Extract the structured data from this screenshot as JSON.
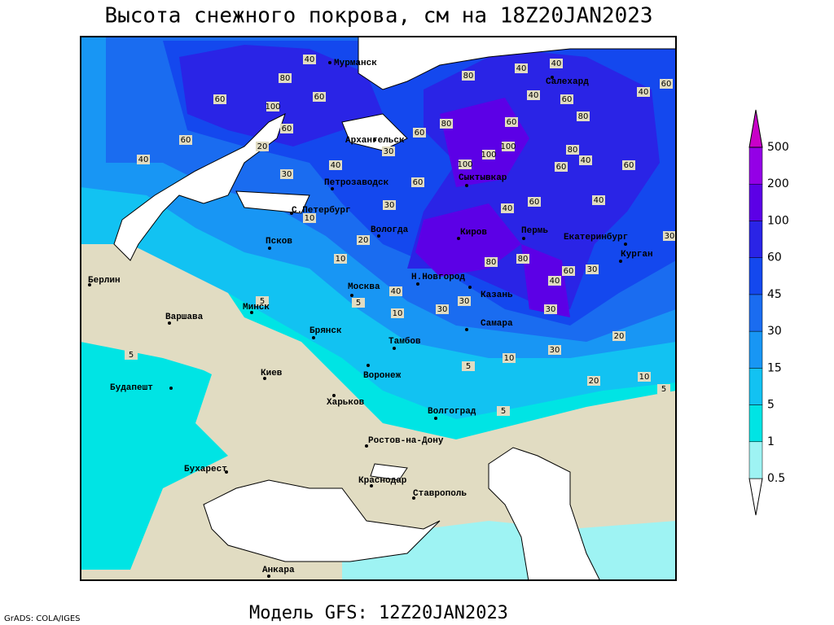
{
  "header": {
    "title": "Высота снежного покрова, см на 18Z20JAN2023"
  },
  "colorbar": {
    "levels": [
      0.5,
      1,
      5,
      15,
      30,
      45,
      60,
      100,
      200,
      500
    ],
    "colors": [
      "#ffffff",
      "#9ef3f3",
      "#00e4e4",
      "#12c2f2",
      "#1896f4",
      "#1a6cf0",
      "#1448ee",
      "#2a24e6",
      "#5c00e6",
      "#9400e6",
      "#c800c8"
    ]
  },
  "cities": [
    "Мурманск",
    "Салехард",
    "Архангельск",
    "Петрозаводск",
    "Сыктывкар",
    "С.Петербург",
    "Вологда",
    "Киров",
    "Пермь",
    "Екатеринбург",
    "Курган",
    "Псков",
    "Берлин",
    "Н.Новгород",
    "Москва",
    "Казань",
    "Минск",
    "Варшава",
    "Самара",
    "Брянск",
    "Тамбов",
    "Киев",
    "Воронеж",
    "Будапешт",
    "Харьков",
    "Волгоград",
    "Ростов-на-Дону",
    "Бухарест",
    "Краснодар",
    "Ставрополь",
    "Анкара"
  ],
  "contour_labels": [
    40,
    80,
    60,
    100,
    60,
    60,
    60,
    40,
    20,
    30,
    40,
    30,
    60,
    80,
    80,
    40,
    40,
    40,
    60,
    80,
    60,
    100,
    100,
    100,
    80,
    40,
    60,
    60,
    40,
    60,
    40,
    60,
    40,
    60,
    30,
    20,
    10,
    10,
    80,
    80,
    60,
    30,
    40,
    40,
    10,
    30,
    30,
    30,
    20,
    30,
    20,
    10,
    5,
    10,
    5,
    5,
    5,
    5,
    30,
    5
  ],
  "footer": {
    "model": "Модель GFS: 12Z20JAN2023",
    "credit": "GrADS: COLA/IGES"
  }
}
